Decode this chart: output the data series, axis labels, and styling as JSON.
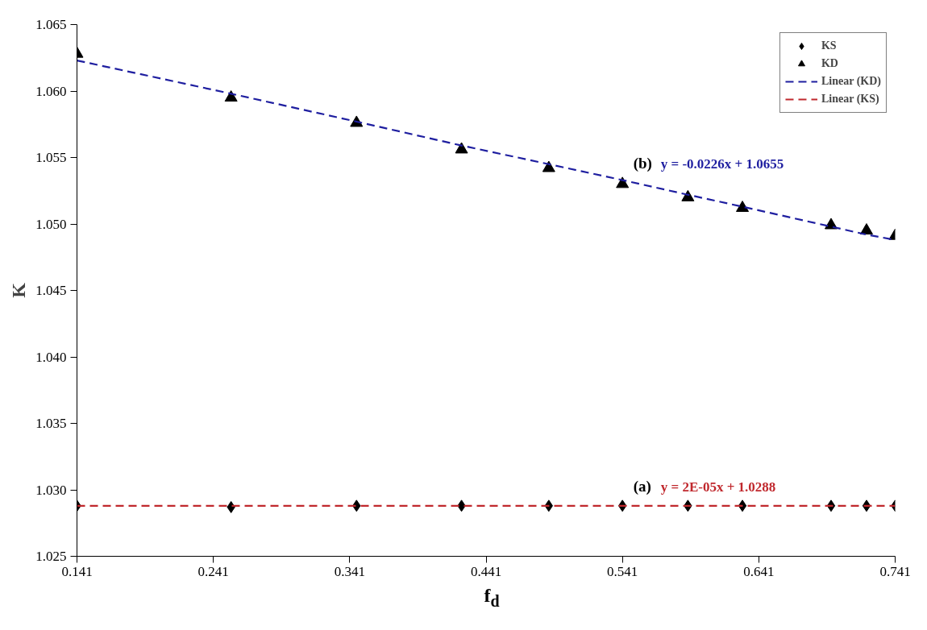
{
  "chart_data": {
    "type": "scatter",
    "xlabel": "f$_{d}$",
    "ylabel": "K",
    "xlim": [
      0.141,
      0.741
    ],
    "xticks": [
      0.141,
      0.241,
      0.341,
      0.441,
      0.541,
      0.641,
      0.741
    ],
    "ylim": [
      1.025,
      1.065
    ],
    "yticks": [
      1.025,
      {
        "value": 1.03,
        "label": "1.030"
      },
      1.035,
      {
        "value": 1.04,
        "label": "1.040"
      },
      1.045,
      {
        "value": 1.05,
        "label": "1.050"
      },
      1.055,
      {
        "value": 1.06,
        "label": "1.060"
      },
      1.065
    ],
    "grid": false,
    "legend": "top right",
    "x": [
      0.141,
      0.254,
      0.346,
      0.423,
      0.487,
      0.541,
      0.589,
      0.629,
      0.694,
      0.72,
      0.741
    ],
    "series": [
      {
        "name": "KS",
        "color": "#000000",
        "marker": "diamond",
        "values": [
          1.0288,
          1.0287,
          1.0288,
          1.0288,
          1.0288,
          1.0288,
          1.0288,
          1.0288,
          1.0288,
          1.0288,
          1.0288
        ]
      },
      {
        "name": "KD",
        "color": "#000000",
        "marker": "triangle",
        "values": [
          1.0628,
          1.0595,
          1.0576,
          1.0556,
          1.0542,
          1.053,
          1.052,
          1.0512,
          1.0499,
          1.0495,
          1.0491
        ]
      },
      {
        "name": "Linear (KD)",
        "type": "line",
        "line_style": "dashed",
        "color": "#1f1fa0",
        "values": [
          1.0623,
          1.0598,
          1.0577,
          1.0559,
          1.0545,
          1.0533,
          1.0522,
          1.0513,
          1.0498,
          1.0492,
          1.0488
        ]
      },
      {
        "name": "Linear (KS)",
        "type": "line",
        "line_style": "dashed",
        "color": "#c0282d",
        "values": [
          1.0288,
          1.0288,
          1.0288,
          1.0288,
          1.0288,
          1.0288,
          1.0288,
          1.0288,
          1.0288,
          1.0288,
          1.0288
        ]
      }
    ],
    "annotations": [
      "(b)",
      "y = -0.0226x + 1.0655",
      "(a)",
      "y = 2E-05x + 1.0288"
    ]
  }
}
